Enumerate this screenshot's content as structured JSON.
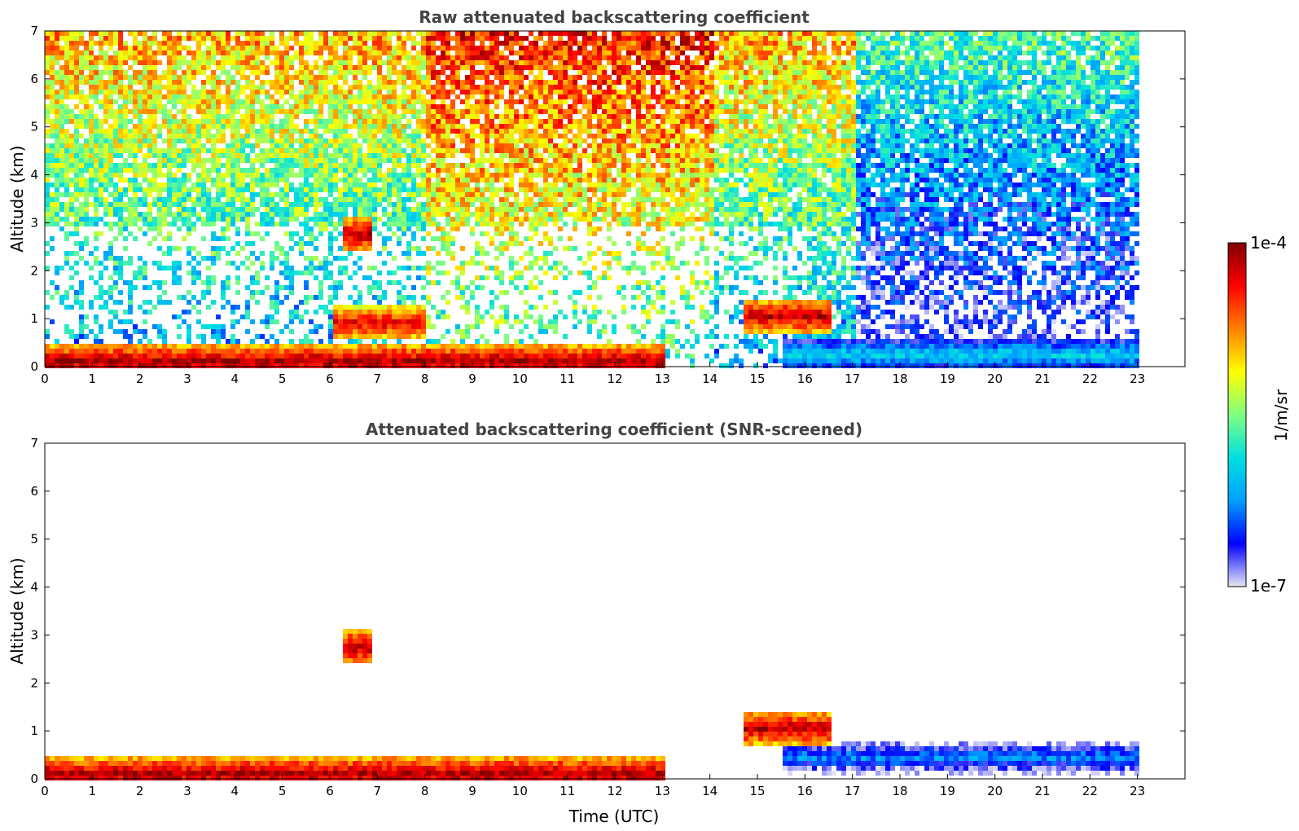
{
  "chart_data": [
    {
      "type": "heatmap",
      "title": "Raw attenuated backscattering coefficient",
      "xlabel": "",
      "ylabel": "Altitude (km)",
      "xlim": [
        0,
        24
      ],
      "ylim": [
        0,
        7
      ],
      "x_ticks": [
        "0",
        "1",
        "2",
        "3",
        "4",
        "5",
        "6",
        "7",
        "8",
        "9",
        "10",
        "11",
        "12",
        "13",
        "14",
        "15",
        "16",
        "17",
        "18",
        "19",
        "20",
        "21",
        "22",
        "23"
      ],
      "y_ticks": [
        "0",
        "1",
        "2",
        "3",
        "4",
        "5",
        "6",
        "7"
      ],
      "data_end_hour": 23,
      "features": [
        {
          "name": "surface layer",
          "x_range": [
            0,
            13
          ],
          "altitude_km": 0.15,
          "level": 0.97
        },
        {
          "name": "elevated layer",
          "x_range": [
            6,
            8
          ],
          "altitude_km": 0.95,
          "level": 0.9
        },
        {
          "name": "plume",
          "x_range": [
            6.2,
            6.8
          ],
          "altitude_km": 2.8,
          "level": 0.95
        },
        {
          "name": "aerosol top",
          "x_range": [
            14.7,
            16.5
          ],
          "altitude_km": 1.1,
          "level": 0.95
        },
        {
          "name": "boundary layer",
          "x_range": [
            15.5,
            23
          ],
          "altitude_km": 0.3,
          "level": 0.35
        }
      ]
    },
    {
      "type": "heatmap",
      "title": "Attenuated backscattering coefficient (SNR-screened)",
      "xlabel": "Time (UTC)",
      "ylabel": "Altitude (km)",
      "xlim": [
        0,
        24
      ],
      "ylim": [
        0,
        7
      ],
      "x_ticks": [
        "0",
        "1",
        "2",
        "3",
        "4",
        "5",
        "6",
        "7",
        "8",
        "9",
        "10",
        "11",
        "12",
        "13",
        "14",
        "15",
        "16",
        "17",
        "18",
        "19",
        "20",
        "21",
        "22",
        "23"
      ],
      "y_ticks": [
        "0",
        "1",
        "2",
        "3",
        "4",
        "5",
        "6",
        "7"
      ],
      "data_end_hour": 23,
      "features": [
        {
          "name": "surface layer",
          "x_range": [
            0,
            13
          ],
          "altitude_km": 0.15,
          "level": 0.97
        },
        {
          "name": "plume",
          "x_range": [
            6.2,
            6.8
          ],
          "altitude_km": 2.8,
          "level": 0.95
        },
        {
          "name": "aerosol top",
          "x_range": [
            14.7,
            16.5
          ],
          "altitude_km": 1.1,
          "level": 0.95
        },
        {
          "name": "boundary layer",
          "x_range": [
            15.5,
            23
          ],
          "altitude_km": 0.5,
          "level": 0.25
        }
      ]
    }
  ],
  "colorbar": {
    "label": "1/m/sr",
    "max_label": "1e-4",
    "min_label": "1e-7",
    "colormap": [
      "#e6e6f5",
      "#0000ff",
      "#00a0ff",
      "#00e0e0",
      "#80ff80",
      "#ffff00",
      "#ff8000",
      "#ff0000",
      "#800000"
    ]
  }
}
